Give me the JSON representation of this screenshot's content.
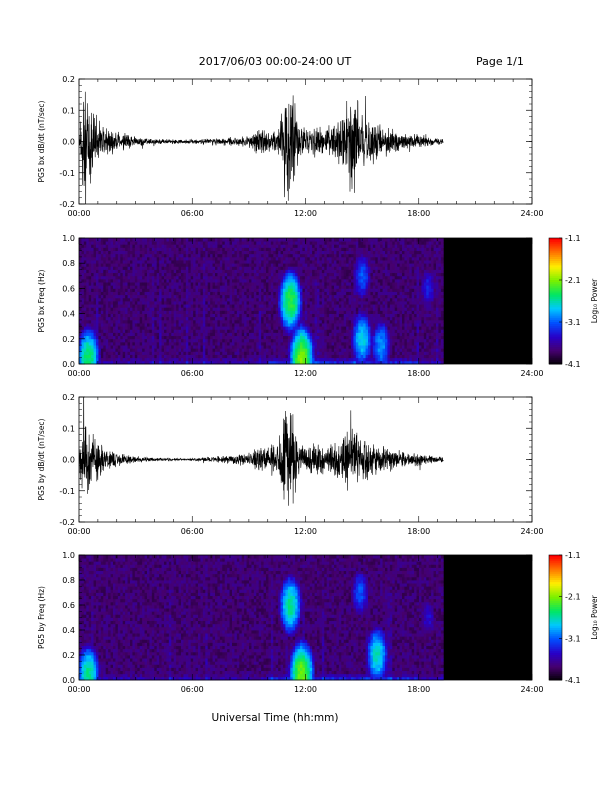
{
  "header": {
    "date_range": "2017/06/03  00:00-24:00 UT",
    "page": "Page 1/1"
  },
  "xaxis": {
    "title": "Universal Time (hh:mm)",
    "ticks": [
      "00:00",
      "06:00",
      "12:00",
      "18:00",
      "24:00"
    ],
    "range_hours": [
      0,
      24
    ]
  },
  "colorbar": {
    "label": "Log₁₀ Power",
    "ticks": [
      "-1.1",
      "-2.1",
      "-3.1",
      "-4.1"
    ],
    "range": [
      -4.1,
      -1.1
    ],
    "colormap": "rainbow: black-purple-blue-cyan-green-yellow-orange-red"
  },
  "chart_data": [
    {
      "type": "line",
      "panel": "bx-waveform",
      "ylabel": "PG5 bx dB/dt (nT/sec)",
      "ylim": [
        -0.2,
        0.2
      ],
      "yticks": [
        "0.2",
        "0.1",
        "0.0",
        "-0.1",
        "-0.2"
      ],
      "xlim": [
        0,
        24
      ],
      "data_end_hour": 19.3,
      "envelope": {
        "x": [
          0,
          0.3,
          0.6,
          1.0,
          1.5,
          2,
          3,
          4,
          5,
          6,
          7,
          8,
          9,
          9.5,
          10,
          10.5,
          11,
          11.3,
          11.6,
          12,
          12.5,
          13,
          13.5,
          14,
          14.5,
          15,
          15.5,
          16,
          16.5,
          17,
          17.5,
          18,
          18.5,
          19,
          19.3
        ],
        "amplitude": [
          0.05,
          0.2,
          0.15,
          0.08,
          0.05,
          0.04,
          0.02,
          0.01,
          0.008,
          0.008,
          0.012,
          0.015,
          0.02,
          0.05,
          0.04,
          0.05,
          0.2,
          0.2,
          0.08,
          0.05,
          0.06,
          0.04,
          0.08,
          0.12,
          0.2,
          0.1,
          0.08,
          0.06,
          0.05,
          0.03,
          0.025,
          0.03,
          0.015,
          0.012,
          0.01
        ]
      },
      "color": "#000000"
    },
    {
      "type": "heatmap",
      "panel": "bx-spectrogram",
      "ylabel": "PG5 bx Freq (Hz)",
      "ylim": [
        0,
        1.0
      ],
      "yticks": [
        "1.0",
        "0.8",
        "0.6",
        "0.4",
        "0.2",
        "0.0"
      ],
      "xlim": [
        0,
        24
      ],
      "data_end_hour": 19.3,
      "colorbar_range": [
        -4.1,
        -1.1
      ],
      "hotspots": [
        {
          "hour": 0.5,
          "peak_freq": 0.05,
          "level": -2.3
        },
        {
          "hour": 11.2,
          "peak_freq": 0.5,
          "level": -2.2
        },
        {
          "hour": 11.8,
          "peak_freq": 0.05,
          "level": -2.0
        },
        {
          "hour": 15.0,
          "peak_freq": 0.7,
          "level": -3.0
        },
        {
          "hour": 15.0,
          "peak_freq": 0.2,
          "level": -2.6
        },
        {
          "hour": 16.0,
          "peak_freq": 0.15,
          "level": -2.8
        },
        {
          "hour": 18.5,
          "peak_freq": 0.6,
          "level": -3.2
        }
      ]
    },
    {
      "type": "line",
      "panel": "by-waveform",
      "ylabel": "PG5 by dB/dt (nT/sec)",
      "ylim": [
        -0.2,
        0.2
      ],
      "yticks": [
        "0.2",
        "0.1",
        "0.0",
        "-0.1",
        "-0.2"
      ],
      "xlim": [
        0,
        24
      ],
      "data_end_hour": 19.3,
      "envelope": {
        "x": [
          0,
          0.3,
          0.6,
          1.0,
          1.5,
          2,
          3,
          4,
          5,
          6,
          7,
          8,
          9,
          9.5,
          10,
          10.5,
          11,
          11.3,
          11.6,
          12,
          12.5,
          13,
          13.5,
          14,
          14.5,
          15,
          15.5,
          16,
          16.5,
          17,
          17.5,
          18,
          18.5,
          19,
          19.3
        ],
        "amplitude": [
          0.05,
          0.2,
          0.12,
          0.07,
          0.04,
          0.025,
          0.012,
          0.006,
          0.004,
          0.004,
          0.01,
          0.015,
          0.025,
          0.04,
          0.05,
          0.06,
          0.2,
          0.2,
          0.08,
          0.05,
          0.06,
          0.05,
          0.07,
          0.09,
          0.13,
          0.09,
          0.07,
          0.05,
          0.04,
          0.03,
          0.02,
          0.025,
          0.015,
          0.012,
          0.01
        ]
      },
      "color": "#000000"
    },
    {
      "type": "heatmap",
      "panel": "by-spectrogram",
      "ylabel": "PG5 by Freq (Hz)",
      "ylim": [
        0,
        1.0
      ],
      "yticks": [
        "1.0",
        "0.8",
        "0.6",
        "0.4",
        "0.2",
        "0.0"
      ],
      "xlim": [
        0,
        24
      ],
      "data_end_hour": 19.3,
      "colorbar_range": [
        -4.1,
        -1.1
      ],
      "hotspots": [
        {
          "hour": 0.5,
          "peak_freq": 0.05,
          "level": -2.4
        },
        {
          "hour": 11.2,
          "peak_freq": 0.6,
          "level": -2.4
        },
        {
          "hour": 11.8,
          "peak_freq": 0.05,
          "level": -2.0
        },
        {
          "hour": 14.9,
          "peak_freq": 0.7,
          "level": -3.0
        },
        {
          "hour": 15.8,
          "peak_freq": 0.2,
          "level": -2.5
        },
        {
          "hour": 18.5,
          "peak_freq": 0.5,
          "level": -3.3
        }
      ]
    }
  ]
}
